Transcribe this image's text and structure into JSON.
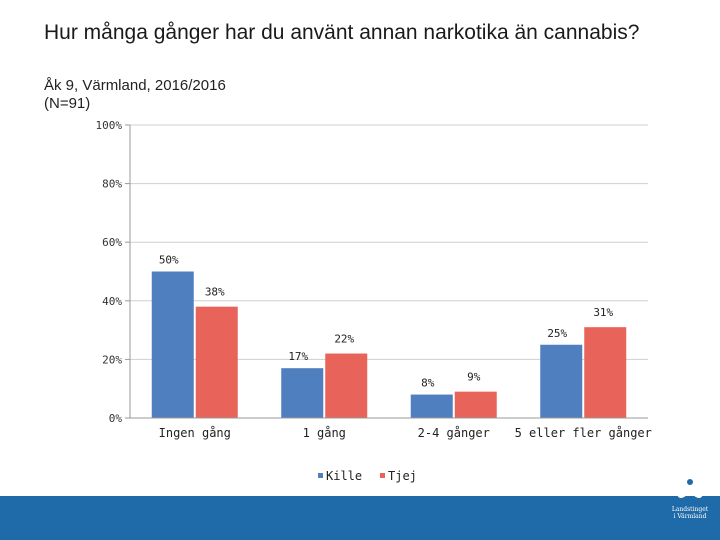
{
  "header": {
    "title": "Hur många gånger har du använt annan narkotika än cannabis?",
    "subtitle": "Åk 9, Värmland, 2016/2016",
    "sample": "(N=91)"
  },
  "colors": {
    "kille": "#4f7fbf",
    "tjej": "#e8645a",
    "footer": "#1f6aa8"
  },
  "chart_data": {
    "type": "bar",
    "categories": [
      "Ingen gång",
      "1 gång",
      "2-4 gånger",
      "5 eller fler gånger"
    ],
    "series": [
      {
        "name": "Kille",
        "values": [
          50,
          17,
          8,
          25
        ],
        "labels": [
          "50%",
          "17%",
          "8%",
          "25%"
        ]
      },
      {
        "name": "Tjej",
        "values": [
          38,
          22,
          9,
          31
        ],
        "labels": [
          "38%",
          "22%",
          "9%",
          "31%"
        ]
      }
    ],
    "ylim": [
      0,
      100
    ],
    "yticks": [
      "0%",
      "20%",
      "40%",
      "60%",
      "80%",
      "100%"
    ],
    "ytick_values": [
      0,
      20,
      40,
      60,
      80,
      100
    ],
    "grid": true,
    "legend": "bottom"
  },
  "logo": {
    "name": "logo-landstinget-varmland",
    "line1": "Landstinget",
    "line2": "i Värmland"
  }
}
